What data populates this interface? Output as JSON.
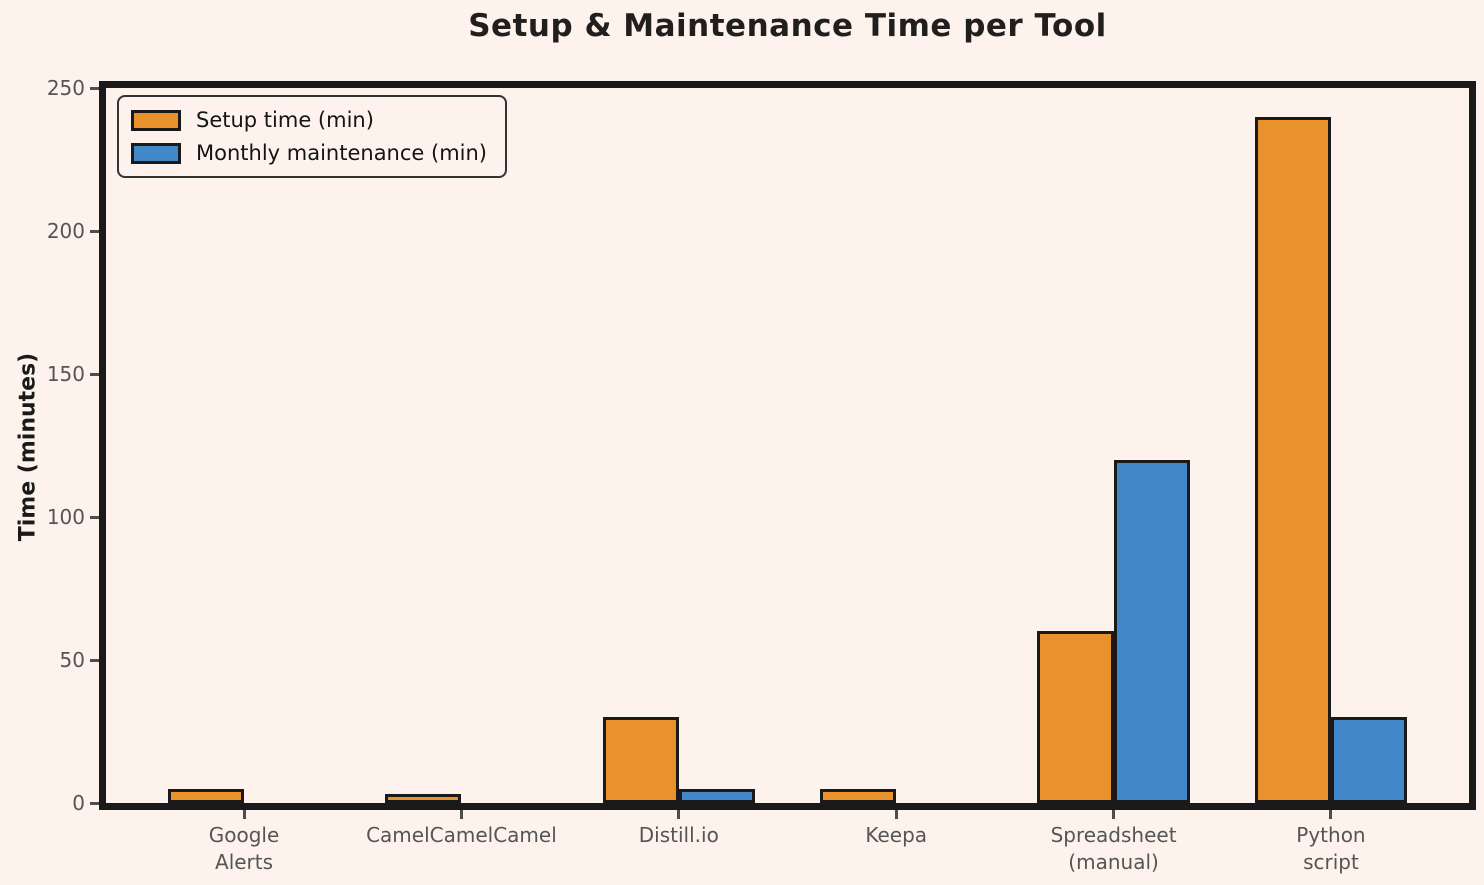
{
  "figure": {
    "background": "#fdf3ec"
  },
  "chart_data": {
    "type": "bar",
    "title": "Setup & Maintenance Time per Tool",
    "categories": [
      "Google\nAlerts",
      "CamelCamelCamel",
      "Distill.io",
      "Keepa",
      "Spreadsheet\n(manual)",
      "Python\nscript"
    ],
    "series": [
      {
        "name": "Setup time (min)",
        "color": "#e8912d",
        "values": [
          5,
          3,
          30,
          5,
          60,
          240
        ]
      },
      {
        "name": "Monthly maintenance (min)",
        "color": "#4287c8",
        "values": [
          0,
          0,
          5,
          0,
          120,
          30
        ]
      }
    ],
    "xlabel": "",
    "ylabel": "Time (minutes)",
    "ylim": [
      0,
      250
    ],
    "yticks": [
      0,
      50,
      100,
      150,
      200,
      250
    ],
    "grid": false,
    "legend_position": "upper left",
    "bar_edge_color": "#1a1a1a",
    "axis_color": "#1a1a1a",
    "tick_label_color": "#555555"
  }
}
